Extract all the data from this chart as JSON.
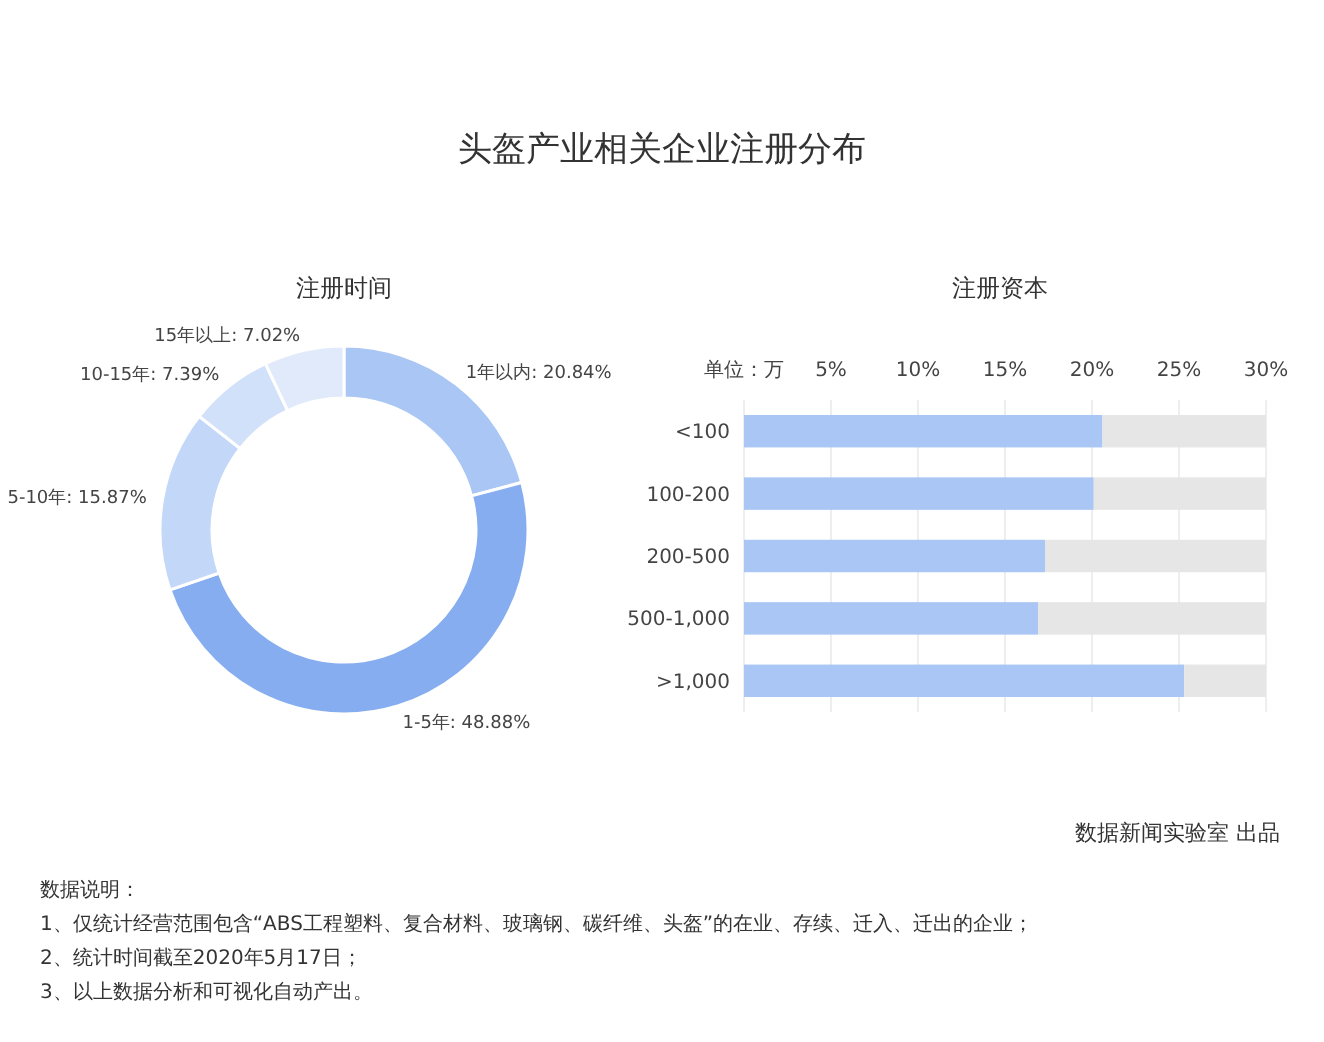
{
  "chart_data": [
    {
      "type": "donut",
      "title": "头盔产业相关企业注册分布",
      "subtitle": "注册时间",
      "categories": [
        "1年以内",
        "1-5年",
        "5-10年",
        "10-15年",
        "15年以上"
      ],
      "values": [
        20.84,
        48.88,
        15.87,
        7.39,
        7.02
      ],
      "colors": [
        "#a9c6f5",
        "#86adf0",
        "#c3d7f8",
        "#d2e1fa",
        "#e0eafb"
      ],
      "value_labels": [
        "20.84%",
        "48.88%",
        "15.87%",
        "7.39%",
        "7.02%"
      ]
    },
    {
      "type": "bar",
      "orientation": "horizontal",
      "stacked": true,
      "subtitle": "注册资本",
      "xlabel": "单位：万",
      "categories": [
        "<100",
        "100-200",
        "200-500",
        "500-1,000",
        ">1,000"
      ],
      "series": [
        {
          "color": "#a9c6f5",
          "values": [
            20.6,
            20.1,
            17.3,
            16.9,
            25.3
          ]
        },
        {
          "color": "#e6e6e6",
          "values": [
            9.4,
            9.9,
            12.7,
            13.1,
            4.7
          ]
        }
      ],
      "xlim": [
        0,
        30
      ],
      "xticks": [
        {
          "value": 5,
          "label": "5%"
        },
        {
          "value": 10,
          "label": "10%"
        },
        {
          "value": 15,
          "label": "15%"
        },
        {
          "value": 20,
          "label": "20%"
        },
        {
          "value": 25,
          "label": "25%"
        },
        {
          "value": 30,
          "label": "30%"
        }
      ],
      "grid": "x",
      "annotations": [
        "数据说明：",
        "1、仅统计经营范围包含“ABS工程塑料、复合材料、玻璃钢、碳纤维、头盔”的在业、存续、迁入、迁出的企业；",
        "2、统计时间截至2020年5月17日；",
        "3、以上数据分析和可视化自动产出。",
        "数据新闻实验室 出品"
      ]
    }
  ]
}
